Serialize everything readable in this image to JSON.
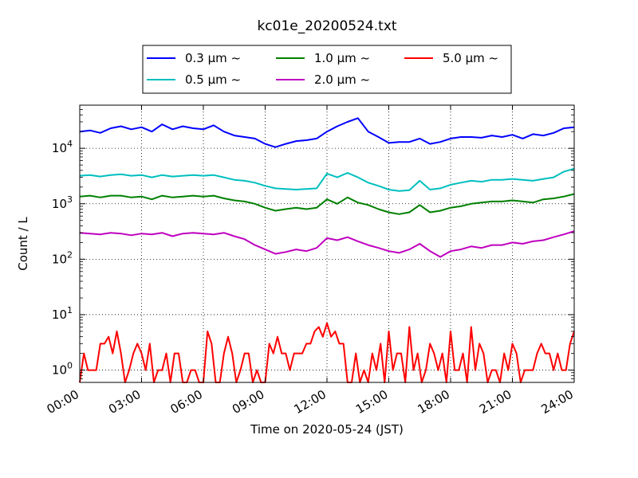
{
  "chart_data": {
    "type": "line",
    "title": "kc01e_20200524.txt",
    "xlabel": "Time on 2020-05-24 (JST)",
    "ylabel": "Count / L",
    "y_scale": "log",
    "xlim_hours": [
      0,
      24
    ],
    "ylim": [
      0.6,
      60000
    ],
    "grid": true,
    "legend_position": "top-center-above-plot",
    "x_ticks": [
      "00:00",
      "03:00",
      "06:00",
      "09:00",
      "12:00",
      "15:00",
      "18:00",
      "21:00",
      "24:00"
    ],
    "y_ticks": [
      {
        "base": "10",
        "exp": "0",
        "value": 1
      },
      {
        "base": "10",
        "exp": "1",
        "value": 10
      },
      {
        "base": "10",
        "exp": "2",
        "value": 100
      },
      {
        "base": "10",
        "exp": "3",
        "value": 1000
      },
      {
        "base": "10",
        "exp": "4",
        "value": 10000
      }
    ],
    "series": [
      {
        "name": "0.3 μm ~",
        "color": "#0000ff",
        "x": [
          0,
          0.5,
          1,
          1.5,
          2,
          2.5,
          3,
          3.5,
          4,
          4.5,
          5,
          5.5,
          6,
          6.5,
          7,
          7.5,
          8,
          8.5,
          9,
          9.5,
          10,
          10.5,
          11,
          11.5,
          12,
          12.5,
          13,
          13.5,
          14,
          14.5,
          15,
          15.5,
          16,
          16.5,
          17,
          17.5,
          18,
          18.5,
          19,
          19.5,
          20,
          20.5,
          21,
          21.5,
          22,
          22.5,
          23,
          23.5,
          24
        ],
        "values": [
          20000,
          21000,
          19000,
          23000,
          25000,
          22000,
          24000,
          20000,
          27000,
          22000,
          25000,
          23000,
          22000,
          26000,
          20000,
          17000,
          16000,
          15000,
          12000,
          10500,
          12000,
          13500,
          14000,
          15000,
          20000,
          25000,
          30000,
          35000,
          20000,
          16000,
          12500,
          13000,
          13000,
          15000,
          12000,
          13000,
          15000,
          16000,
          16000,
          15500,
          17000,
          16000,
          17500,
          15000,
          18000,
          17000,
          19000,
          23000,
          24000
        ]
      },
      {
        "name": "0.5 μm ~",
        "color": "#00bfbf",
        "x": [
          0,
          0.5,
          1,
          1.5,
          2,
          2.5,
          3,
          3.5,
          4,
          4.5,
          5,
          5.5,
          6,
          6.5,
          7,
          7.5,
          8,
          8.5,
          9,
          9.5,
          10,
          10.5,
          11,
          11.5,
          12,
          12.5,
          13,
          13.5,
          14,
          14.5,
          15,
          15.5,
          16,
          16.5,
          17,
          17.5,
          18,
          18.5,
          19,
          19.5,
          20,
          20.5,
          21,
          21.5,
          22,
          22.5,
          23,
          23.5,
          24
        ],
        "values": [
          3200,
          3300,
          3100,
          3300,
          3400,
          3200,
          3300,
          3000,
          3300,
          3100,
          3200,
          3300,
          3200,
          3300,
          3000,
          2700,
          2600,
          2400,
          2100,
          1900,
          1850,
          1800,
          1850,
          1900,
          3500,
          3000,
          3600,
          3000,
          2400,
          2100,
          1800,
          1700,
          1750,
          2600,
          1800,
          1900,
          2200,
          2400,
          2600,
          2500,
          2700,
          2700,
          2800,
          2700,
          2600,
          2800,
          3000,
          3800,
          4300
        ]
      },
      {
        "name": "1.0 μm ~",
        "color": "#008000",
        "x": [
          0,
          0.5,
          1,
          1.5,
          2,
          2.5,
          3,
          3.5,
          4,
          4.5,
          5,
          5.5,
          6,
          6.5,
          7,
          7.5,
          8,
          8.5,
          9,
          9.5,
          10,
          10.5,
          11,
          11.5,
          12,
          12.5,
          13,
          13.5,
          14,
          14.5,
          15,
          15.5,
          16,
          16.5,
          17,
          17.5,
          18,
          18.5,
          19,
          19.5,
          20,
          20.5,
          21,
          21.5,
          22,
          22.5,
          23,
          23.5,
          24
        ],
        "values": [
          1350,
          1400,
          1300,
          1400,
          1400,
          1300,
          1350,
          1200,
          1400,
          1300,
          1350,
          1400,
          1350,
          1400,
          1250,
          1150,
          1100,
          1000,
          850,
          750,
          800,
          850,
          800,
          850,
          1200,
          1000,
          1300,
          1050,
          950,
          800,
          700,
          650,
          700,
          950,
          700,
          750,
          850,
          900,
          1000,
          1050,
          1100,
          1100,
          1150,
          1100,
          1050,
          1200,
          1250,
          1350,
          1500
        ]
      },
      {
        "name": "2.0 μm ~",
        "color": "#bf00bf",
        "x": [
          0,
          0.5,
          1,
          1.5,
          2,
          2.5,
          3,
          3.5,
          4,
          4.5,
          5,
          5.5,
          6,
          6.5,
          7,
          7.5,
          8,
          8.5,
          9,
          9.5,
          10,
          10.5,
          11,
          11.5,
          12,
          12.5,
          13,
          13.5,
          14,
          14.5,
          15,
          15.5,
          16,
          16.5,
          17,
          17.5,
          18,
          18.5,
          19,
          19.5,
          20,
          20.5,
          21,
          21.5,
          22,
          22.5,
          23,
          23.5,
          24
        ],
        "values": [
          300,
          290,
          280,
          300,
          290,
          270,
          290,
          280,
          300,
          260,
          290,
          300,
          290,
          280,
          300,
          260,
          230,
          180,
          150,
          125,
          135,
          150,
          140,
          160,
          240,
          220,
          250,
          210,
          180,
          160,
          140,
          130,
          150,
          190,
          140,
          110,
          140,
          150,
          170,
          160,
          180,
          180,
          200,
          190,
          210,
          220,
          250,
          280,
          320
        ]
      },
      {
        "name": "5.0 μm ~",
        "color": "#ff0000",
        "x": [
          0,
          0.2,
          0.4,
          0.6,
          0.8,
          1,
          1.2,
          1.4,
          1.6,
          1.8,
          2,
          2.2,
          2.4,
          2.6,
          2.8,
          3,
          3.2,
          3.4,
          3.6,
          3.8,
          4,
          4.2,
          4.4,
          4.6,
          4.8,
          5,
          5.2,
          5.4,
          5.6,
          5.8,
          6,
          6.2,
          6.4,
          6.6,
          6.8,
          7,
          7.2,
          7.4,
          7.6,
          7.8,
          8,
          8.2,
          8.4,
          8.6,
          8.8,
          9,
          9.2,
          9.4,
          9.6,
          9.8,
          10,
          10.2,
          10.4,
          10.6,
          10.8,
          11,
          11.2,
          11.4,
          11.6,
          11.8,
          12,
          12.2,
          12.4,
          12.6,
          12.8,
          13,
          13.2,
          13.4,
          13.6,
          13.8,
          14,
          14.2,
          14.4,
          14.6,
          14.8,
          15,
          15.2,
          15.4,
          15.6,
          15.8,
          16,
          16.2,
          16.4,
          16.6,
          16.8,
          17,
          17.2,
          17.4,
          17.6,
          17.8,
          18,
          18.2,
          18.4,
          18.6,
          18.8,
          19,
          19.2,
          19.4,
          19.6,
          19.8,
          20,
          20.2,
          20.4,
          20.6,
          20.8,
          21,
          21.2,
          21.4,
          21.6,
          21.8,
          22,
          22.2,
          22.4,
          22.6,
          22.8,
          23,
          23.2,
          23.4,
          23.6,
          23.8,
          24
        ],
        "values": [
          0.6,
          2,
          1,
          1,
          1,
          3,
          3,
          4,
          2,
          5,
          2,
          0.6,
          1,
          2,
          3,
          2,
          1,
          3,
          0.6,
          1,
          1,
          2,
          0.6,
          2,
          2,
          0.6,
          0.6,
          1,
          1,
          0.6,
          0.6,
          5,
          3,
          0.6,
          0.6,
          2,
          4,
          2,
          0.6,
          1,
          2,
          2,
          0.6,
          1,
          0.6,
          0.6,
          3,
          2,
          4,
          2,
          2,
          1,
          2,
          2,
          2,
          3,
          3,
          5,
          6,
          4,
          7,
          4,
          5,
          3,
          3,
          0.6,
          0.6,
          2,
          0.6,
          1,
          0.6,
          2,
          1,
          3,
          0.6,
          5,
          1,
          2,
          2,
          0.6,
          6,
          1,
          2,
          0.6,
          1,
          3,
          2,
          1,
          2,
          0.6,
          5,
          1,
          1,
          2,
          0.6,
          6,
          1,
          3,
          2,
          0.6,
          1,
          1,
          0.6,
          2,
          1,
          3,
          2,
          0.6,
          1,
          1,
          1,
          2,
          3,
          2,
          2,
          1,
          2,
          1,
          1,
          3,
          5
        ]
      }
    ]
  }
}
